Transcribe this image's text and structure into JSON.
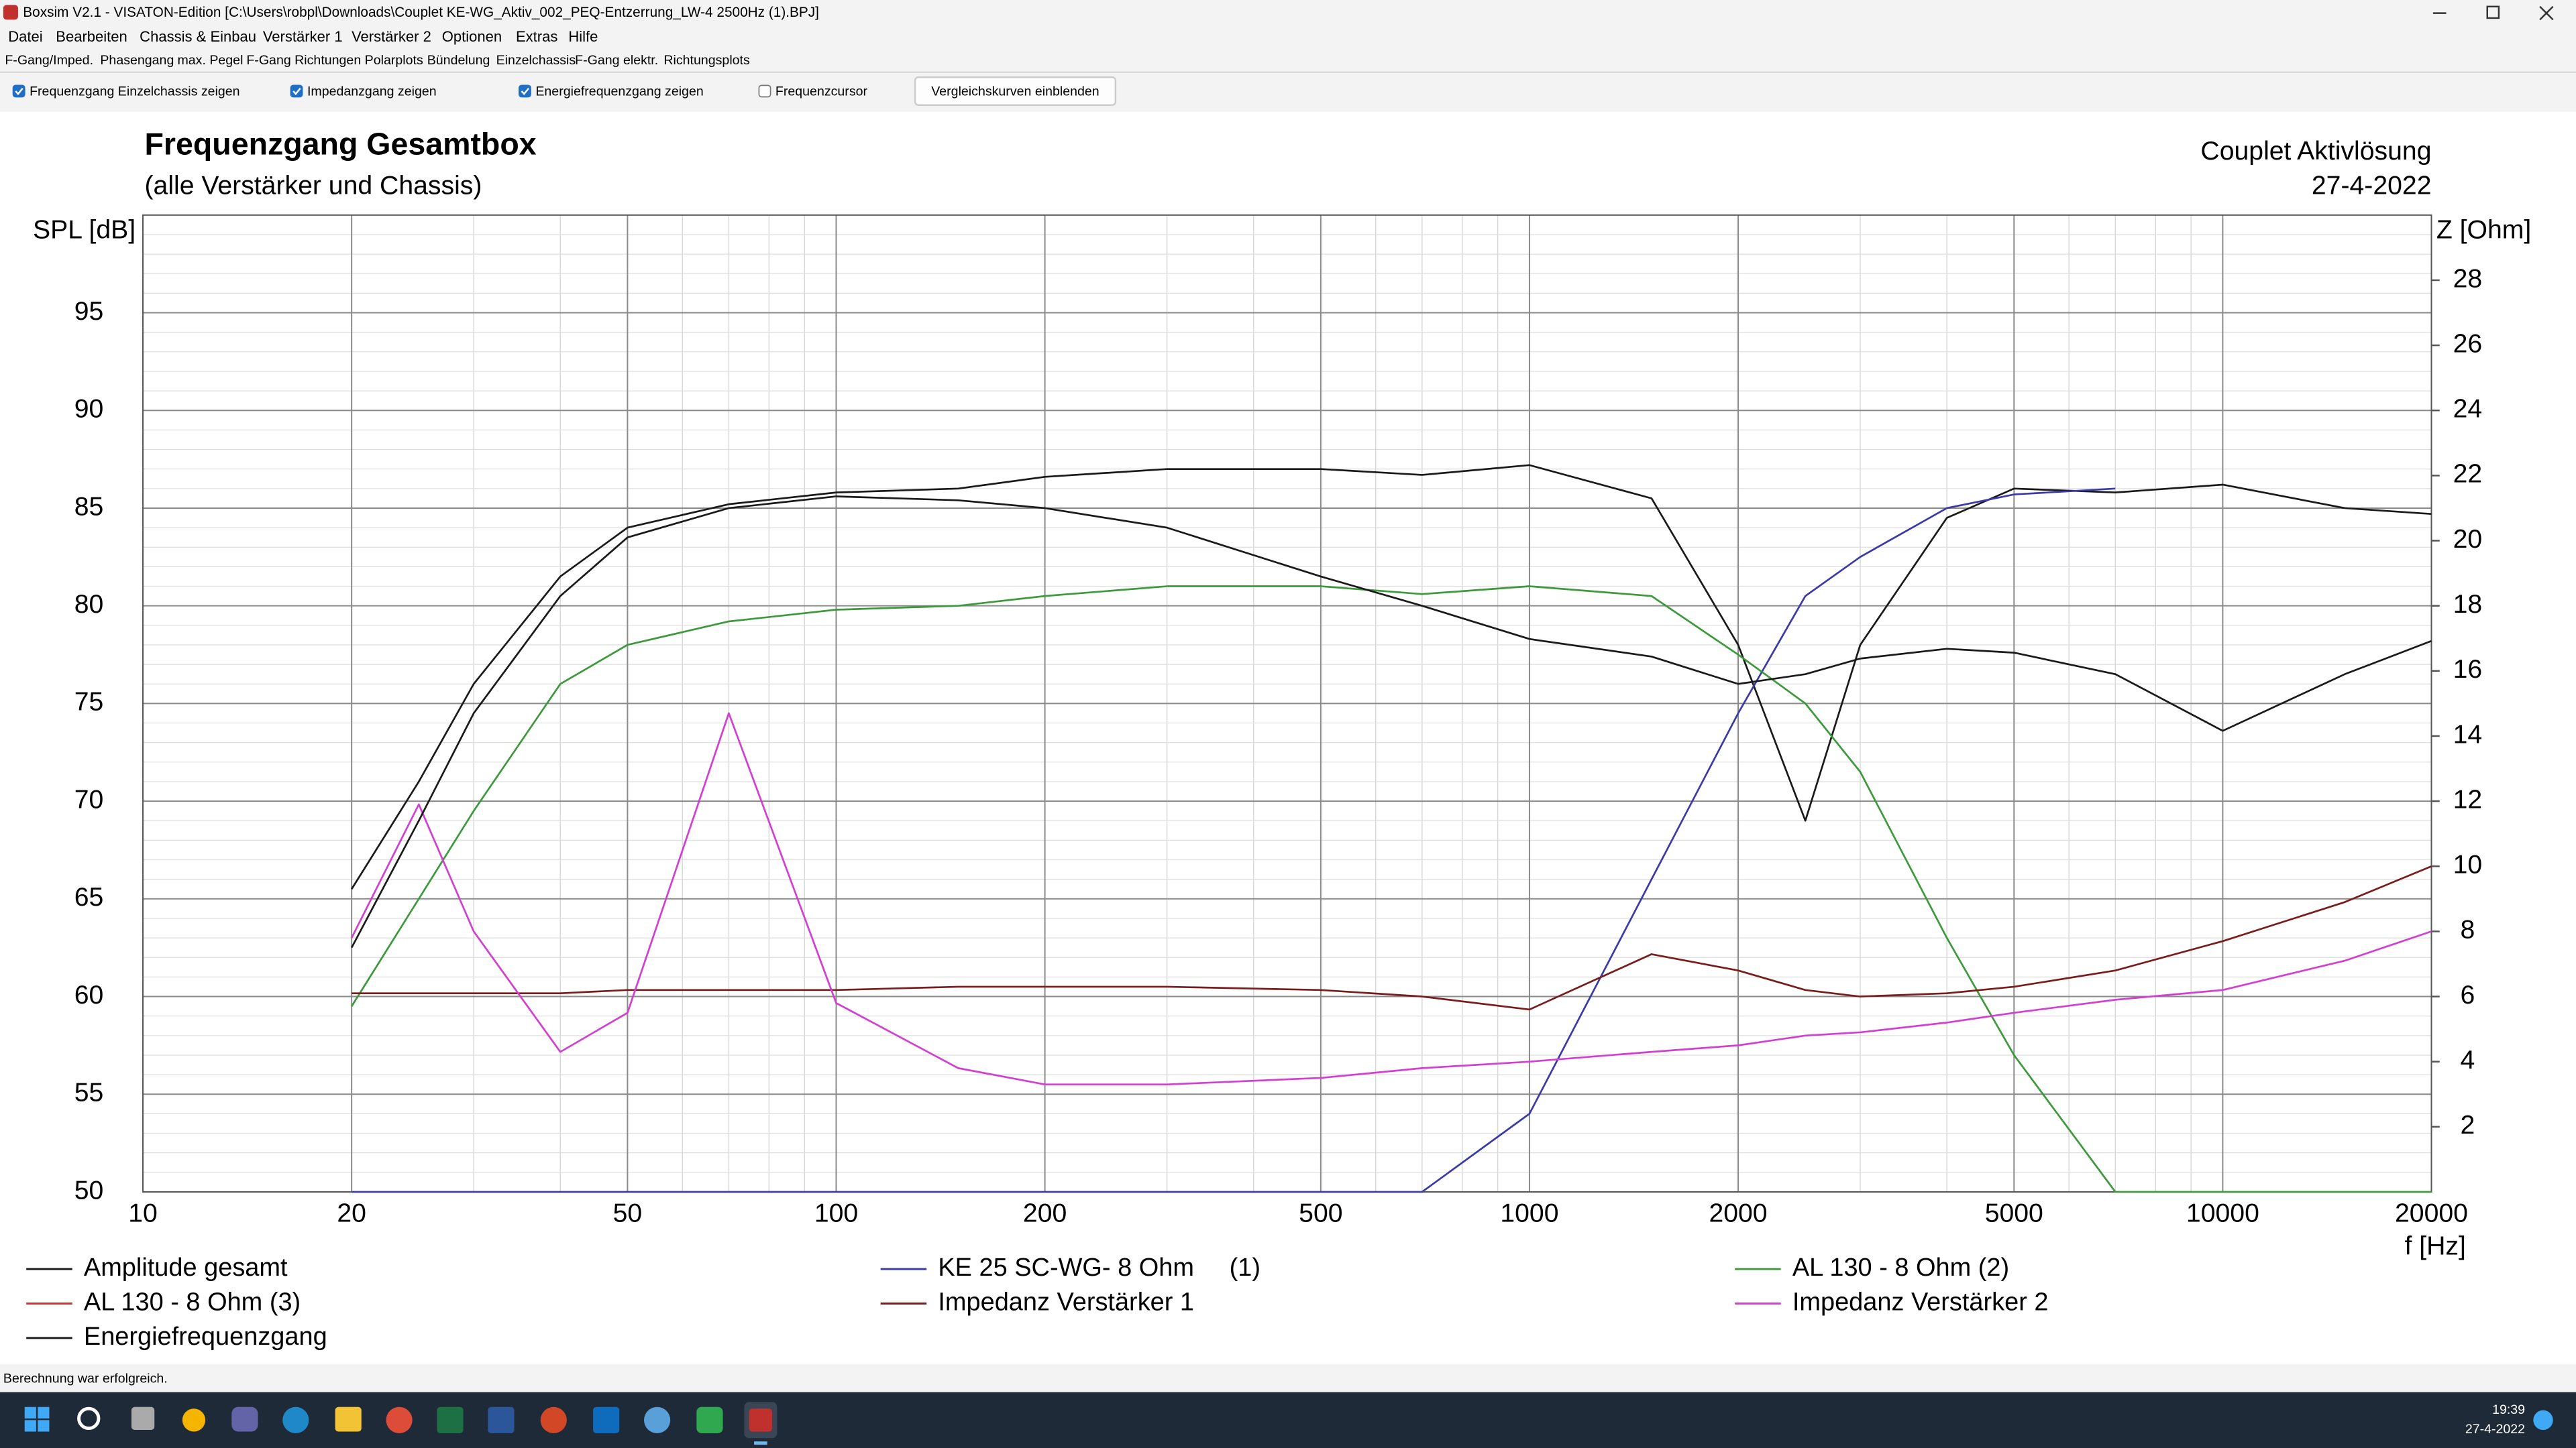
{
  "window": {
    "title": "Boxsim V2.1 - VISATON-Edition [C:\\Users\\robpl\\Downloads\\Couplet KE-WG_Aktiv_002_PEQ-Entzerrung_LW-4 2500Hz (1).BPJ]"
  },
  "menu": [
    "Datei",
    "Bearbeiten",
    "Chassis & Einbau",
    "Verstärker 1",
    "Verstärker 2",
    "Optionen",
    "Extras",
    "Hilfe"
  ],
  "tabs": [
    "F-Gang/Imped.",
    "Phasengang",
    "max. Pegel",
    "F-Gang Richtungen",
    "Polarplots",
    "Bündelung",
    "Einzelchassis",
    "F-Gang elektr.",
    "Richtungsplots"
  ],
  "toolbar": {
    "checkboxes": [
      {
        "label": "Frequenzgang Einzelchassis zeigen",
        "checked": true
      },
      {
        "label": "Impedanzgang zeigen",
        "checked": true
      },
      {
        "label": "Energiefrequenzgang zeigen",
        "checked": true
      },
      {
        "label": "Frequenzcursor",
        "checked": false
      }
    ],
    "button": "Vergleichskurven einblenden"
  },
  "chart_data": {
    "type": "line",
    "title": "Frequenzgang Gesamtbox",
    "subtitle": "(alle Verstärker und Chassis)",
    "annotations": [
      "Couplet Aktivlösung",
      "27-4-2022"
    ],
    "x_label": "f [Hz]",
    "y_label": "SPL [dB]",
    "y2_label": "Z [Ohm]",
    "x_scale": "log",
    "grid": true,
    "xlim": [
      10,
      20000
    ],
    "xticks": [
      10,
      20,
      50,
      100,
      200,
      500,
      1000,
      2000,
      5000,
      10000,
      20000
    ],
    "ylim": [
      50,
      100
    ],
    "yticks": [
      50,
      55,
      60,
      65,
      70,
      75,
      80,
      85,
      90,
      95
    ],
    "y2lim": [
      0,
      30
    ],
    "y2ticks": [
      2,
      4,
      6,
      8,
      10,
      12,
      14,
      16,
      18,
      20,
      22,
      24,
      26,
      28
    ],
    "x": [
      20,
      25,
      30,
      40,
      50,
      70,
      100,
      150,
      200,
      300,
      500,
      700,
      1000,
      1500,
      2000,
      2500,
      3000,
      4000,
      5000,
      7000,
      10000,
      15000,
      20000
    ],
    "series": [
      {
        "name": "Amplitude gesamt",
        "color": "#1a1a1a",
        "values": [
          65.5,
          71,
          76,
          81.5,
          84,
          85.2,
          85.8,
          86,
          86.6,
          87,
          87,
          86.7,
          87.2,
          85.5,
          78,
          69,
          78,
          84.5,
          86,
          85.8,
          86.2,
          85,
          84.7
        ]
      },
      {
        "name": "KE 25 SC-WG- 8 Ohm     (1)",
        "color": "#3a3aa8",
        "values": [
          50,
          50,
          50,
          50,
          50,
          50,
          50,
          50,
          50,
          50,
          50,
          50,
          54,
          66,
          74.5,
          80.5,
          82.5,
          85,
          85.7,
          86,
          null,
          null,
          null
        ]
      },
      {
        "name": "AL 130 - 8 Ohm (2)",
        "color": "#3c9a3c",
        "values": [
          59.5,
          65,
          69.5,
          76,
          78,
          79.2,
          79.8,
          80,
          80.5,
          81,
          81,
          80.6,
          81,
          80.5,
          77.5,
          75,
          71.5,
          63,
          57,
          50,
          50,
          50,
          50
        ]
      },
      {
        "name": "AL 130 - 8 Ohm (3)",
        "color": "#cc3333",
        "values": [
          null,
          null,
          null,
          null,
          null,
          null,
          null,
          null,
          null,
          null,
          null,
          null,
          null,
          null,
          null,
          null,
          null,
          null,
          null,
          null,
          null,
          null,
          null
        ]
      },
      {
        "name": "Impedanz Verstärker 1",
        "color": "#7a1c1c",
        "axis": "y2",
        "values": [
          6.1,
          6.1,
          6.1,
          6.1,
          6.2,
          6.2,
          6.2,
          6.3,
          6.3,
          6.3,
          6.2,
          6.0,
          5.6,
          7.3,
          6.8,
          6.2,
          6.0,
          6.1,
          6.3,
          6.8,
          7.7,
          8.9,
          10
        ]
      },
      {
        "name": "Impedanz Verstärker 2",
        "color": "#d23fd2",
        "axis": "y2",
        "values": [
          7.8,
          11.9,
          8,
          4.3,
          5.5,
          14.7,
          5.8,
          3.8,
          3.3,
          3.3,
          3.5,
          3.8,
          4.0,
          4.3,
          4.5,
          4.8,
          4.9,
          5.2,
          5.5,
          5.9,
          6.2,
          7.1,
          8
        ]
      },
      {
        "name": "Energiefrequenzgang",
        "color": "#1a1a1a",
        "values": [
          62.5,
          69,
          74.5,
          80.5,
          83.5,
          85,
          85.6,
          85.4,
          85,
          84,
          81.5,
          80,
          78.3,
          77.4,
          76,
          76.5,
          77.3,
          77.8,
          77.6,
          76.5,
          73.6,
          76.5,
          78.2
        ]
      }
    ]
  },
  "status": "Berechnung war erfolgreich.",
  "taskbar": {
    "time": "19:39",
    "date": "27-4-2022"
  }
}
